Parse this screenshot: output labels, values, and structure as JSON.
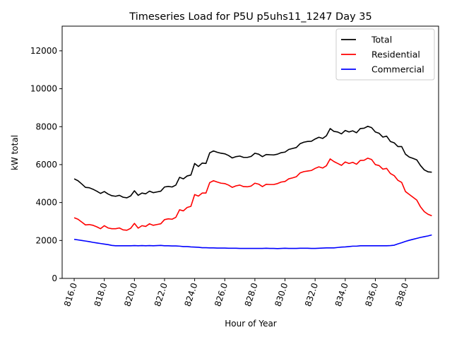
{
  "chart_data": {
    "type": "line",
    "title": "Timeseries Load for P5U p5uhs11_1247  Day 35",
    "xlabel": "Hour of Year",
    "ylabel": "kW total",
    "xlim": [
      815.2,
      840.2
    ],
    "ylim": [
      0,
      13300
    ],
    "xticks": [
      816.0,
      818.0,
      820.0,
      822.0,
      824.0,
      826.0,
      828.0,
      830.0,
      832.0,
      834.0,
      836.0,
      838.0
    ],
    "xtick_labels": [
      "816.0",
      "818.0",
      "820.0",
      "822.0",
      "824.0",
      "826.0",
      "828.0",
      "830.0",
      "832.0",
      "834.0",
      "836.0",
      "838.0"
    ],
    "yticks": [
      0,
      2000,
      4000,
      6000,
      8000,
      10000,
      12000
    ],
    "ytick_labels": [
      "0",
      "2000",
      "4000",
      "6000",
      "8000",
      "10000",
      "12000"
    ],
    "legend_position": "top-right",
    "x_start": 816.0,
    "x_step": 0.25,
    "series": [
      {
        "name": "Total",
        "color": "#000000",
        "values": [
          5250,
          5150,
          4980,
          4800,
          4780,
          4700,
          4600,
          4480,
          4580,
          4450,
          4360,
          4330,
          4380,
          4280,
          4250,
          4350,
          4620,
          4380,
          4500,
          4460,
          4600,
          4520,
          4560,
          4600,
          4820,
          4850,
          4820,
          4920,
          5330,
          5250,
          5400,
          5450,
          6060,
          5900,
          6080,
          6060,
          6620,
          6720,
          6650,
          6600,
          6570,
          6480,
          6350,
          6420,
          6450,
          6380,
          6380,
          6430,
          6600,
          6550,
          6420,
          6530,
          6520,
          6510,
          6550,
          6630,
          6660,
          6800,
          6850,
          6900,
          7100,
          7180,
          7220,
          7230,
          7350,
          7440,
          7380,
          7520,
          7900,
          7750,
          7720,
          7620,
          7800,
          7720,
          7780,
          7680,
          7900,
          7920,
          8020,
          7950,
          7720,
          7650,
          7450,
          7500,
          7220,
          7150,
          6950,
          6950,
          6550,
          6400,
          6330,
          6250,
          5950,
          5720,
          5620,
          5600
        ]
      },
      {
        "name": "Residential",
        "color": "#ff0000",
        "values": [
          3200,
          3120,
          2970,
          2820,
          2840,
          2800,
          2720,
          2620,
          2780,
          2660,
          2620,
          2620,
          2660,
          2560,
          2540,
          2640,
          2900,
          2650,
          2780,
          2740,
          2880,
          2800,
          2840,
          2880,
          3100,
          3140,
          3120,
          3220,
          3620,
          3560,
          3740,
          3800,
          4420,
          4340,
          4500,
          4500,
          5050,
          5150,
          5080,
          5020,
          5000,
          4920,
          4800,
          4880,
          4920,
          4840,
          4830,
          4870,
          5020,
          4970,
          4840,
          4960,
          4950,
          4950,
          5000,
          5080,
          5110,
          5250,
          5300,
          5360,
          5560,
          5630,
          5660,
          5690,
          5800,
          5880,
          5820,
          5940,
          6300,
          6160,
          6060,
          5960,
          6140,
          6060,
          6120,
          6020,
          6220,
          6230,
          6340,
          6270,
          6000,
          5950,
          5760,
          5800,
          5530,
          5420,
          5170,
          5060,
          4580,
          4430,
          4280,
          4130,
          3770,
          3520,
          3380,
          3300
        ]
      },
      {
        "name": "Commercial",
        "color": "#0000ff",
        "values": [
          2060,
          2030,
          2000,
          1970,
          1940,
          1900,
          1870,
          1840,
          1810,
          1780,
          1740,
          1720,
          1720,
          1720,
          1720,
          1720,
          1730,
          1720,
          1730,
          1720,
          1730,
          1720,
          1730,
          1740,
          1720,
          1720,
          1710,
          1710,
          1700,
          1680,
          1680,
          1660,
          1650,
          1640,
          1620,
          1620,
          1610,
          1610,
          1600,
          1600,
          1600,
          1590,
          1590,
          1590,
          1580,
          1580,
          1580,
          1580,
          1580,
          1580,
          1580,
          1590,
          1580,
          1580,
          1570,
          1580,
          1590,
          1580,
          1580,
          1580,
          1590,
          1590,
          1590,
          1580,
          1580,
          1590,
          1600,
          1610,
          1610,
          1610,
          1630,
          1650,
          1660,
          1680,
          1700,
          1700,
          1720,
          1720,
          1720,
          1720,
          1720,
          1720,
          1720,
          1720,
          1730,
          1750,
          1820,
          1880,
          1950,
          2010,
          2060,
          2110,
          2160,
          2200,
          2240,
          2290
        ]
      }
    ]
  }
}
